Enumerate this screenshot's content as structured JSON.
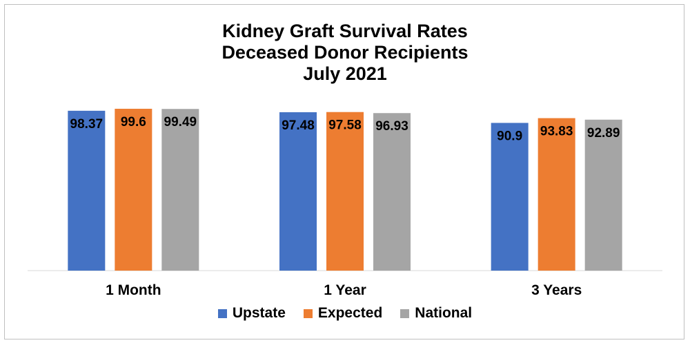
{
  "chart_data": {
    "type": "bar",
    "title_lines": [
      "Kidney Graft Survival Rates",
      "Deceased Donor Recipients",
      "July 2021"
    ],
    "categories": [
      "1 Month",
      "1 Year",
      "3 Years"
    ],
    "series": [
      {
        "name": "Upstate",
        "values": [
          98.37,
          97.48,
          90.9
        ],
        "labels": [
          "98.37",
          "97.48",
          "90.9"
        ],
        "color": "#4472C4"
      },
      {
        "name": "Expected",
        "values": [
          99.6,
          97.58,
          93.83
        ],
        "labels": [
          "99.6",
          "97.58",
          "93.83"
        ],
        "color": "#ED7D31"
      },
      {
        "name": "National",
        "values": [
          99.49,
          96.93,
          92.89
        ],
        "labels": [
          "99.49",
          "96.93",
          "92.89"
        ],
        "color": "#A5A5A5"
      }
    ],
    "ylim": [
      0,
      100
    ],
    "grid": false,
    "legend_position": "bottom",
    "data_labels_position": "inside-end"
  }
}
